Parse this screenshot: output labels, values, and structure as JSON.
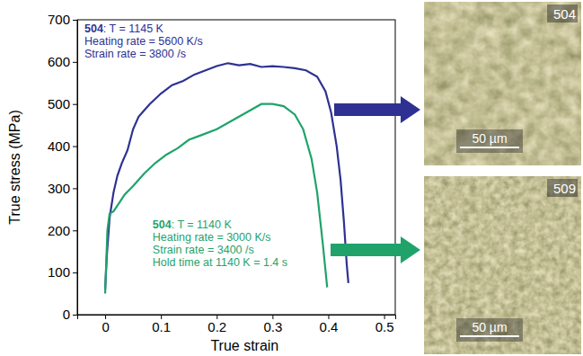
{
  "chart_data": {
    "type": "line",
    "x_label": "True strain",
    "y_label": "True stress (MPa)",
    "xlim": [
      -0.05,
      0.52
    ],
    "ylim": [
      0,
      700
    ],
    "xticks": [
      0,
      0.1,
      0.2,
      0.3,
      0.4,
      0.5
    ],
    "yticks": [
      0,
      100,
      200,
      300,
      400,
      500,
      600,
      700
    ],
    "grid": false,
    "series": [
      {
        "color": "#2e3192",
        "x": [
          0,
          0.003,
          0.008,
          0.015,
          0.022,
          0.03,
          0.04,
          0.05,
          0.06,
          0.07,
          0.08,
          0.1,
          0.12,
          0.14,
          0.16,
          0.18,
          0.2,
          0.22,
          0.24,
          0.26,
          0.28,
          0.3,
          0.32,
          0.34,
          0.36,
          0.38,
          0.395,
          0.405,
          0.415,
          0.422,
          0.428,
          0.433,
          0.436
        ],
        "values": [
          60,
          140,
          230,
          290,
          330,
          360,
          390,
          440,
          470,
          485,
          500,
          525,
          545,
          555,
          570,
          580,
          590,
          597,
          592,
          595,
          588,
          590,
          588,
          585,
          580,
          565,
          530,
          480,
          400,
          320,
          220,
          120,
          75
        ]
      },
      {
        "color": "#1fa36b",
        "x": [
          0,
          0.004,
          0.008,
          0.015,
          0.025,
          0.035,
          0.05,
          0.07,
          0.09,
          0.11,
          0.13,
          0.15,
          0.17,
          0.2,
          0.22,
          0.24,
          0.26,
          0.28,
          0.3,
          0.32,
          0.34,
          0.355,
          0.37,
          0.38,
          0.39,
          0.398
        ],
        "values": [
          50,
          200,
          240,
          245,
          265,
          285,
          305,
          335,
          360,
          380,
          395,
          415,
          425,
          440,
          455,
          470,
          485,
          500,
          500,
          495,
          475,
          440,
          370,
          290,
          170,
          65
        ]
      }
    ],
    "annotations": [
      {
        "color": "#2e3192",
        "lines": [
          "504: T = 1145 K",
          "Heating rate = 5600 K/s",
          "Strain rate = 3800 /s"
        ]
      },
      {
        "color": "#1fa36b",
        "lines": [
          "504: T = 1140 K",
          "Heating rate = 3000 K/s",
          "Strain rate = 3400 /s",
          "Hold time at 1140 K = 1.4 s"
        ]
      }
    ]
  },
  "micrographs": [
    {
      "label": "504",
      "scale_bar": "50 µm"
    },
    {
      "label": "509",
      "scale_bar": "50 µm"
    }
  ]
}
